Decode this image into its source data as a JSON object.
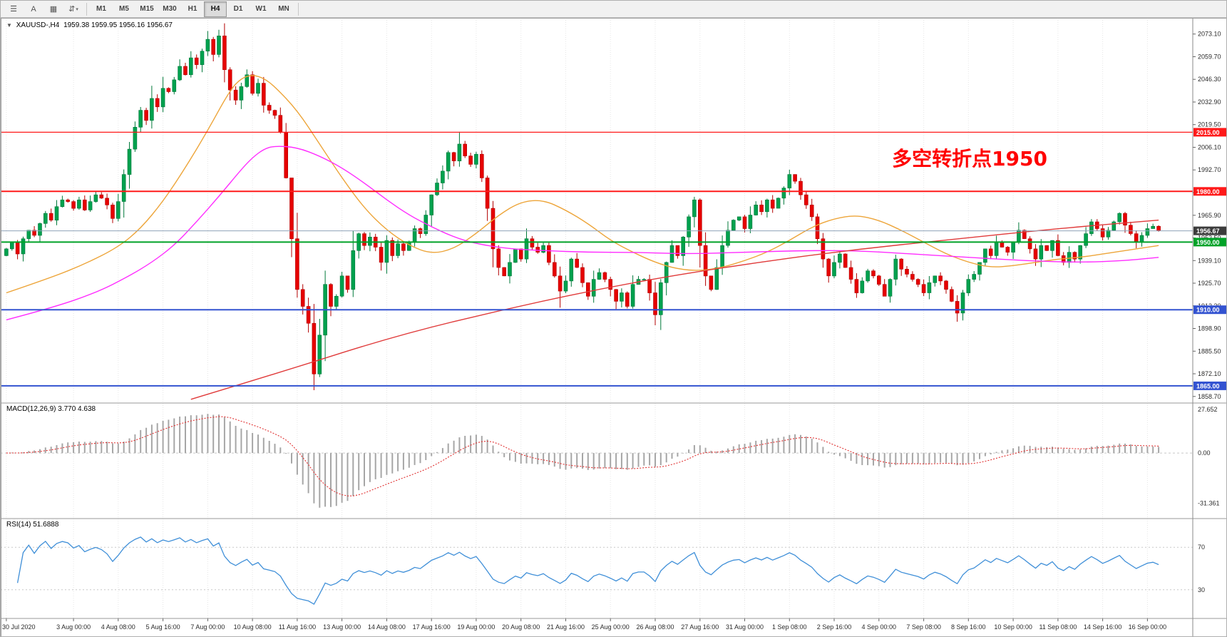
{
  "toolbar": {
    "icons": [
      {
        "name": "chart-bars-icon",
        "glyph": "☰"
      },
      {
        "name": "text-label-icon",
        "glyph": "A"
      },
      {
        "name": "objects-list-icon",
        "glyph": "▦"
      },
      {
        "name": "cycle-arrows-icon",
        "glyph": "⇵",
        "caret": "▾"
      }
    ],
    "timeframes": [
      "M1",
      "M5",
      "M15",
      "M30",
      "H1",
      "H4",
      "D1",
      "W1",
      "MN"
    ],
    "active_timeframe": "H4"
  },
  "header": {
    "dropdown_icon": "▼",
    "symbol": "XAUUSD-,H4",
    "ohlc": "1959.38 1959.95 1956.16 1956.67"
  },
  "annotation": {
    "text": "多空转折点1950",
    "color": "#ff0000"
  },
  "macd_label": "MACD(12,26,9) 3.770 4.638",
  "rsi_label": "RSI(14) 51.6888",
  "axes": {
    "price_ticks": [
      "2073.10",
      "2059.70",
      "2046.30",
      "2032.90",
      "2019.50",
      "2006.10",
      "1992.70",
      "1979.30",
      "1965.90",
      "1952.50",
      "1939.10",
      "1925.70",
      "1912.30",
      "1898.90",
      "1885.50",
      "1872.10",
      "1858.70"
    ],
    "macd_ticks": [
      {
        "v": 27.652,
        "label": "27.652"
      },
      {
        "v": 0,
        "label": "0.00"
      },
      {
        "v": -31.361,
        "label": "-31.361"
      }
    ],
    "rsi_levels": [
      {
        "v": 70,
        "label": "70"
      },
      {
        "v": 30,
        "label": "30"
      }
    ],
    "time_ticks": [
      {
        "i": 0,
        "label": "30 Jul 2020"
      },
      {
        "i": 12,
        "label": "3 Aug 00:00"
      },
      {
        "i": 20,
        "label": "4 Aug 08:00"
      },
      {
        "i": 28,
        "label": "5 Aug 16:00"
      },
      {
        "i": 36,
        "label": "7 Aug 00:00"
      },
      {
        "i": 44,
        "label": "10 Aug 08:00"
      },
      {
        "i": 52,
        "label": "11 Aug 16:00"
      },
      {
        "i": 60,
        "label": "13 Aug 00:00"
      },
      {
        "i": 68,
        "label": "14 Aug 08:00"
      },
      {
        "i": 76,
        "label": "17 Aug 16:00"
      },
      {
        "i": 84,
        "label": "19 Aug 00:00"
      },
      {
        "i": 92,
        "label": "20 Aug 08:00"
      },
      {
        "i": 100,
        "label": "21 Aug 16:00"
      },
      {
        "i": 108,
        "label": "25 Aug 00:00"
      },
      {
        "i": 116,
        "label": "26 Aug 08:00"
      },
      {
        "i": 124,
        "label": "27 Aug 16:00"
      },
      {
        "i": 132,
        "label": "31 Aug 00:00"
      },
      {
        "i": 140,
        "label": "1 Sep 08:00"
      },
      {
        "i": 148,
        "label": "2 Sep 16:00"
      },
      {
        "i": 156,
        "label": "4 Sep 00:00"
      },
      {
        "i": 164,
        "label": "7 Sep 08:00"
      },
      {
        "i": 172,
        "label": "8 Sep 16:00"
      },
      {
        "i": 180,
        "label": "10 Sep 00:00"
      },
      {
        "i": 188,
        "label": "11 Sep 08:00"
      },
      {
        "i": 196,
        "label": "14 Sep 16:00"
      },
      {
        "i": 204,
        "label": "16 Sep 00:00"
      }
    ]
  },
  "levels": [
    {
      "price": 2015.0,
      "label": "2015.00",
      "color": "#ff1a1a",
      "width": 1.2
    },
    {
      "price": 1980.0,
      "label": "1980.00",
      "color": "#ff1a1a",
      "width": 2
    },
    {
      "price": 1950.0,
      "label": "1950.00",
      "color": "#00a228",
      "width": 2
    },
    {
      "price": 1910.0,
      "label": "1910.00",
      "color": "#3353d1",
      "width": 2
    },
    {
      "price": 1865.0,
      "label": "1865.00",
      "color": "#3353d1",
      "width": 2
    }
  ],
  "current_price": {
    "value": 1956.67,
    "label": "1956.67",
    "line_color": "#8fa3b8",
    "box_color": "#3c3c3c"
  },
  "chart_data": {
    "type": "candlestick",
    "symbol": "XAUUSD",
    "timeframe": "H4",
    "ylim": [
      1856.5,
      2081.0
    ],
    "open_first": 1942,
    "up_color": "#00a14e",
    "up_stroke": "#00793a",
    "down_color": "#e60000",
    "down_stroke": "#b30000",
    "closes": [
      1946,
      1950,
      1943,
      1952,
      1957,
      1954,
      1961,
      1967,
      1963,
      1971,
      1975,
      1974,
      1970,
      1975,
      1969,
      1974,
      1978,
      1976,
      1972,
      1964,
      1974,
      1990,
      2005,
      2018,
      2028,
      2022,
      2035,
      2030,
      2041,
      2039,
      2046,
      2054,
      2049,
      2059,
      2055,
      2063,
      2070,
      2061,
      2072,
      2052,
      2040,
      2034,
      2042,
      2049,
      2038,
      2044,
      2031,
      2028,
      2025,
      2015,
      1988,
      1952,
      1922,
      1912,
      1902,
      1872,
      1895,
      1925,
      1912,
      1918,
      1930,
      1922,
      1945,
      1955,
      1948,
      1953,
      1947,
      1938,
      1951,
      1942,
      1949,
      1945,
      1950,
      1958,
      1955,
      1966,
      1978,
      1985,
      1992,
      2003,
      1998,
      2008,
      2001,
      1996,
      2002,
      1988,
      1970,
      1946,
      1935,
      1930,
      1938,
      1946,
      1940,
      1952,
      1947,
      1944,
      1948,
      1938,
      1930,
      1921,
      1927,
      1940,
      1935,
      1926,
      1918,
      1928,
      1932,
      1928,
      1922,
      1915,
      1920,
      1912,
      1925,
      1928,
      1928,
      1920,
      1907,
      1926,
      1938,
      1948,
      1942,
      1953,
      1965,
      1975,
      1948,
      1930,
      1922,
      1935,
      1948,
      1957,
      1963,
      1965,
      1958,
      1966,
      1972,
      1968,
      1975,
      1970,
      1976,
      1982,
      1990,
      1986,
      1978,
      1972,
      1965,
      1952,
      1940,
      1930,
      1938,
      1943,
      1935,
      1928,
      1920,
      1927,
      1933,
      1930,
      1925,
      1918,
      1928,
      1940,
      1934,
      1931,
      1928,
      1925,
      1920,
      1926,
      1930,
      1927,
      1922,
      1915,
      1908,
      1920,
      1928,
      1931,
      1938,
      1946,
      1942,
      1950,
      1947,
      1944,
      1950,
      1957,
      1952,
      1946,
      1940,
      1948,
      1945,
      1951,
      1942,
      1938,
      1944,
      1940,
      1948,
      1955,
      1962,
      1958,
      1953,
      1957,
      1962,
      1967,
      1960,
      1955,
      1950,
      1954,
      1958,
      1959.38,
      1956.67
    ],
    "wick_overrides": {
      "36": {
        "h": 2074.9
      },
      "38": {
        "h": 2075.6
      },
      "53": {
        "l": 1907.2
      },
      "55": {
        "l": 1862.4
      },
      "81": {
        "h": 2015.3
      },
      "99": {
        "l": 1911.2
      },
      "109": {
        "l": 1910.4
      },
      "116": {
        "l": 1900.8
      },
      "123": {
        "h": 1976.8
      },
      "140": {
        "h": 1992.9
      },
      "170": {
        "l": 1902.9
      },
      "206": {
        "h": 1959.95,
        "l": 1956.16
      }
    },
    "moving_averages": [
      {
        "name": "ma-medium-orange",
        "color": "#eda53a",
        "points": [
          [
            0,
            1920
          ],
          [
            8,
            1929
          ],
          [
            14,
            1937
          ],
          [
            20,
            1947
          ],
          [
            24,
            1958
          ],
          [
            28,
            1974
          ],
          [
            32,
            1994
          ],
          [
            36,
            2016
          ],
          [
            40,
            2040
          ],
          [
            42,
            2047
          ],
          [
            44,
            2049
          ],
          [
            46,
            2047
          ],
          [
            48,
            2042
          ],
          [
            52,
            2028
          ],
          [
            56,
            2008
          ],
          [
            60,
            1988
          ],
          [
            64,
            1970
          ],
          [
            68,
            1957
          ],
          [
            72,
            1948
          ],
          [
            76,
            1943
          ],
          [
            80,
            1946
          ],
          [
            84,
            1955
          ],
          [
            88,
            1966
          ],
          [
            92,
            1974
          ],
          [
            96,
            1975
          ],
          [
            100,
            1969
          ],
          [
            104,
            1961
          ],
          [
            108,
            1951
          ],
          [
            112,
            1944
          ],
          [
            116,
            1938
          ],
          [
            120,
            1934
          ],
          [
            124,
            1933
          ],
          [
            128,
            1935
          ],
          [
            132,
            1939
          ],
          [
            136,
            1944
          ],
          [
            140,
            1951
          ],
          [
            144,
            1959
          ],
          [
            148,
            1964
          ],
          [
            152,
            1966
          ],
          [
            156,
            1963
          ],
          [
            160,
            1957
          ],
          [
            164,
            1950
          ],
          [
            168,
            1943
          ],
          [
            172,
            1938
          ],
          [
            176,
            1935
          ],
          [
            180,
            1936
          ],
          [
            184,
            1938
          ],
          [
            188,
            1940
          ],
          [
            192,
            1941
          ],
          [
            196,
            1943
          ],
          [
            200,
            1945
          ],
          [
            204,
            1947
          ],
          [
            206,
            1948
          ]
        ]
      },
      {
        "name": "ma-slow-magenta",
        "color": "#ff2dff",
        "points": [
          [
            0,
            1904
          ],
          [
            8,
            1911
          ],
          [
            16,
            1920
          ],
          [
            22,
            1930
          ],
          [
            26,
            1938
          ],
          [
            30,
            1948
          ],
          [
            34,
            1962
          ],
          [
            38,
            1977
          ],
          [
            42,
            1993
          ],
          [
            44,
            2000
          ],
          [
            46,
            2005
          ],
          [
            48,
            2007
          ],
          [
            52,
            2006
          ],
          [
            56,
            2001
          ],
          [
            60,
            1994
          ],
          [
            64,
            1985
          ],
          [
            68,
            1975
          ],
          [
            72,
            1966
          ],
          [
            76,
            1959
          ],
          [
            80,
            1953
          ],
          [
            84,
            1949
          ],
          [
            90,
            1946
          ],
          [
            96,
            1945
          ],
          [
            104,
            1944
          ],
          [
            112,
            1944
          ],
          [
            122,
            1943
          ],
          [
            132,
            1944
          ],
          [
            142,
            1945
          ],
          [
            152,
            1945
          ],
          [
            162,
            1943
          ],
          [
            172,
            1941
          ],
          [
            182,
            1939
          ],
          [
            192,
            1938
          ],
          [
            200,
            1939
          ],
          [
            206,
            1941
          ]
        ]
      },
      {
        "name": "ma-long-red",
        "color": "#e03a3a",
        "points": [
          [
            33,
            1857
          ],
          [
            50,
            1874
          ],
          [
            70,
            1895
          ],
          [
            90,
            1911
          ],
          [
            110,
            1925
          ],
          [
            130,
            1936
          ],
          [
            150,
            1945
          ],
          [
            170,
            1952
          ],
          [
            185,
            1957
          ],
          [
            195,
            1960
          ],
          [
            206,
            1963
          ]
        ]
      }
    ],
    "macd": {
      "fast": 12,
      "slow": 26,
      "signal": 9,
      "main": 3.77,
      "signal_value": 4.638,
      "histogram_color": "#a6a6a6",
      "signal_color": "#e03030"
    },
    "rsi": {
      "period": 14,
      "value": 51.6888,
      "color": "#3f8fd8"
    }
  }
}
